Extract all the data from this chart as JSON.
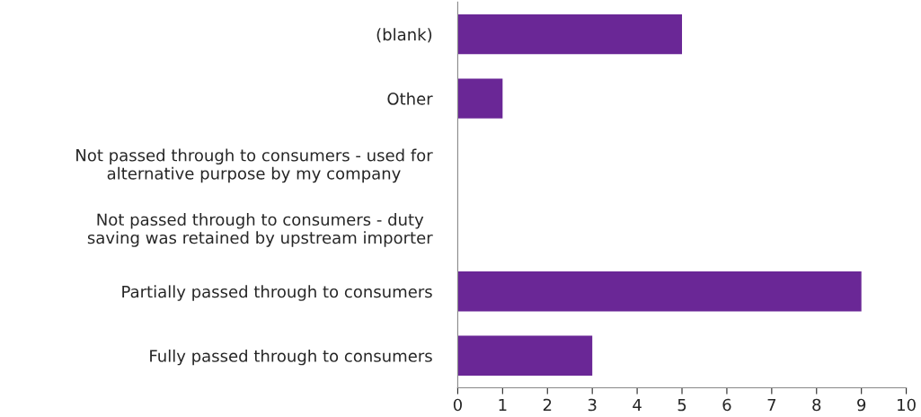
{
  "chart_data": {
    "type": "bar",
    "orientation": "horizontal",
    "categories": [
      "(blank)",
      "Other",
      "Not passed through to consumers - used for\nalternative purpose by my company",
      "Not passed through to consumers - duty\nsaving was retained by upstream importer",
      "Partially passed through to consumers",
      "Fully passed through to consumers"
    ],
    "values": [
      5,
      1,
      0,
      0,
      9,
      3
    ],
    "color": "#6a2796",
    "xlim": [
      0,
      10
    ],
    "xticks": [
      0,
      1,
      2,
      3,
      4,
      5,
      6,
      7,
      8,
      9,
      10
    ],
    "grid": false,
    "legend": false
  }
}
